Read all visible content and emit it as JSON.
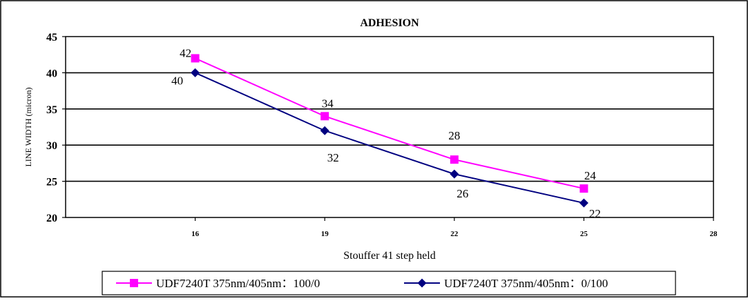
{
  "chart_data": {
    "type": "line",
    "title": "ADHESION",
    "xlabel": "Stouffer 41 step held",
    "ylabel": "LINE WIDTH (micron)",
    "x": [
      16,
      19,
      22,
      25
    ],
    "x_ticks": [
      "16",
      "19",
      "22",
      "25",
      "28"
    ],
    "xlim": [
      13,
      28
    ],
    "y_ticks": [
      "20",
      "25",
      "30",
      "35",
      "40",
      "45"
    ],
    "ylim": [
      20,
      45
    ],
    "grid": "horizontal",
    "legend_position": "bottom",
    "series": [
      {
        "name": "UDF7240T 375nm/405nm：100/0",
        "values": [
          42,
          34,
          28,
          24
        ],
        "labels": [
          "42",
          "34",
          "28",
          "24"
        ],
        "color": "#ff00ff",
        "marker": "square"
      },
      {
        "name": "UDF7240T 375nm/405nm：0/100",
        "values": [
          40,
          32,
          26,
          22
        ],
        "labels": [
          "40",
          "32",
          "26",
          "22"
        ],
        "color": "#000080",
        "marker": "diamond"
      }
    ]
  }
}
